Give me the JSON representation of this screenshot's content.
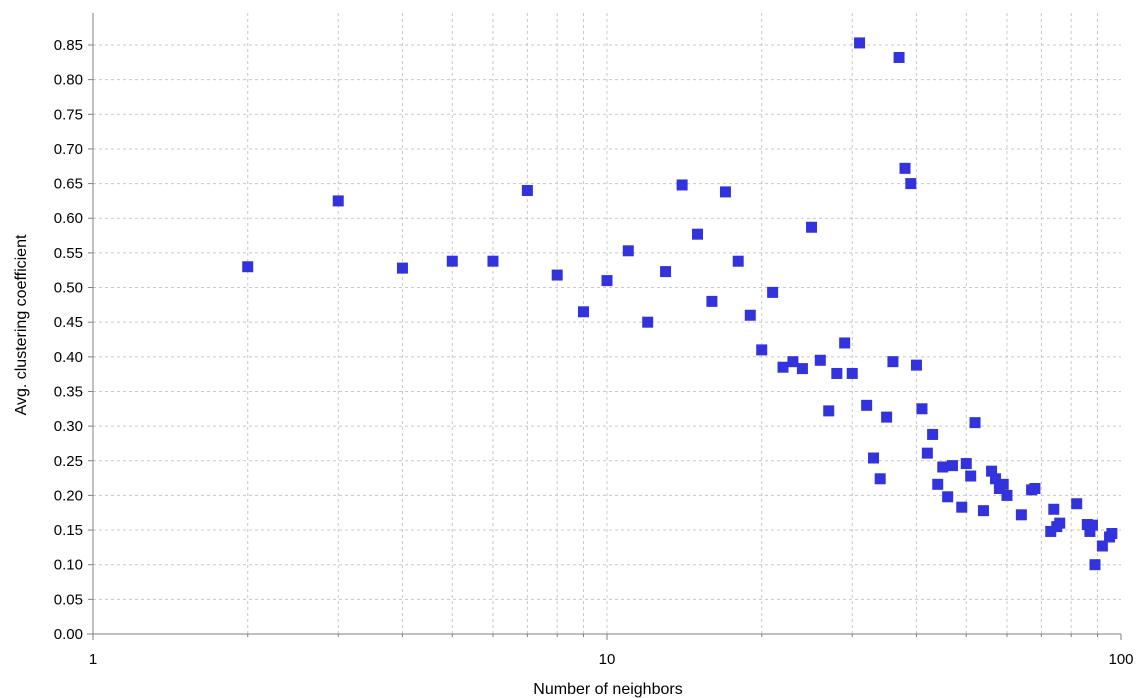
{
  "chart_data": {
    "type": "scatter",
    "xlabel": "Number of neighbors",
    "ylabel": "Avg. clustering coefficient",
    "x_scale": "log",
    "xlim": [
      1,
      100
    ],
    "ylim": [
      0,
      0.88
    ],
    "x_ticks": [
      1,
      10,
      100
    ],
    "x_tick_labels": [
      "1",
      "10",
      "100"
    ],
    "y_ticks": [
      0.0,
      0.05,
      0.1,
      0.15,
      0.2,
      0.25,
      0.3,
      0.35,
      0.4,
      0.45,
      0.5,
      0.55,
      0.6,
      0.65,
      0.7,
      0.75,
      0.8,
      0.85
    ],
    "y_tick_labels": [
      "0.00",
      "0.05",
      "0.10",
      "0.15",
      "0.20",
      "0.25",
      "0.30",
      "0.35",
      "0.40",
      "0.45",
      "0.50",
      "0.55",
      "0.60",
      "0.65",
      "0.70",
      "0.75",
      "0.80",
      "0.85"
    ],
    "grid": true,
    "marker_color": "#3333dd",
    "marker_shape": "square",
    "points": [
      [
        2,
        0.53
      ],
      [
        3,
        0.625
      ],
      [
        4,
        0.528
      ],
      [
        5,
        0.538
      ],
      [
        6,
        0.538
      ],
      [
        7,
        0.64
      ],
      [
        8,
        0.518
      ],
      [
        9,
        0.465
      ],
      [
        10,
        0.51
      ],
      [
        11,
        0.553
      ],
      [
        12,
        0.45
      ],
      [
        13,
        0.523
      ],
      [
        14,
        0.648
      ],
      [
        15,
        0.577
      ],
      [
        16,
        0.48
      ],
      [
        17,
        0.638
      ],
      [
        18,
        0.538
      ],
      [
        19,
        0.46
      ],
      [
        20,
        0.41
      ],
      [
        21,
        0.493
      ],
      [
        22,
        0.385
      ],
      [
        23,
        0.393
      ],
      [
        24,
        0.383
      ],
      [
        25,
        0.587
      ],
      [
        26,
        0.395
      ],
      [
        27,
        0.322
      ],
      [
        28,
        0.376
      ],
      [
        29,
        0.42
      ],
      [
        30,
        0.376
      ],
      [
        31,
        0.853
      ],
      [
        32,
        0.33
      ],
      [
        33,
        0.254
      ],
      [
        34,
        0.224
      ],
      [
        35,
        0.313
      ],
      [
        36,
        0.393
      ],
      [
        37,
        0.832
      ],
      [
        38,
        0.672
      ],
      [
        39,
        0.65
      ],
      [
        40,
        0.388
      ],
      [
        41,
        0.325
      ],
      [
        42,
        0.261
      ],
      [
        43,
        0.288
      ],
      [
        44,
        0.216
      ],
      [
        45,
        0.241
      ],
      [
        46,
        0.198
      ],
      [
        47,
        0.243
      ],
      [
        49,
        0.183
      ],
      [
        50,
        0.246
      ],
      [
        51,
        0.228
      ],
      [
        52,
        0.305
      ],
      [
        54,
        0.178
      ],
      [
        56,
        0.235
      ],
      [
        57,
        0.224
      ],
      [
        58,
        0.21
      ],
      [
        59,
        0.216
      ],
      [
        60,
        0.2
      ],
      [
        64,
        0.172
      ],
      [
        67,
        0.208
      ],
      [
        68,
        0.21
      ],
      [
        73,
        0.148
      ],
      [
        74,
        0.18
      ],
      [
        75,
        0.155
      ],
      [
        76,
        0.16
      ],
      [
        82,
        0.188
      ],
      [
        86,
        0.158
      ],
      [
        87,
        0.148
      ],
      [
        88,
        0.157
      ],
      [
        89,
        0.1
      ],
      [
        92,
        0.127
      ],
      [
        95,
        0.14
      ],
      [
        96,
        0.145
      ]
    ]
  }
}
